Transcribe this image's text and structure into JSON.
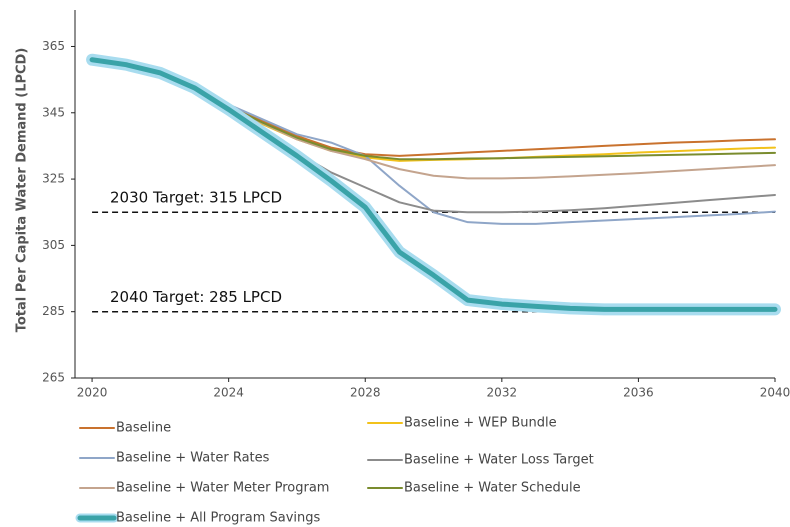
{
  "chart_data": {
    "type": "line",
    "y_label": "Total Per Capita Water Demand (LPCD)",
    "x": [
      2020,
      2021,
      2022,
      2023,
      2024,
      2025,
      2026,
      2027,
      2028,
      2029,
      2030,
      2031,
      2032,
      2033,
      2034,
      2035,
      2036,
      2037,
      2038,
      2039,
      2040
    ],
    "xlim": [
      2019.5,
      2040
    ],
    "xticks": [
      2020,
      2024,
      2028,
      2032,
      2036,
      2040
    ],
    "ylim": [
      265,
      376
    ],
    "yticks": [
      265,
      285,
      305,
      325,
      345,
      365
    ],
    "legend": "bottom",
    "targets": [
      {
        "label": "2030 Target: 315 LPCD",
        "value": 315
      },
      {
        "label": "2040 Target: 285 LPCD",
        "value": 285
      }
    ],
    "series": [
      {
        "name": "Baseline",
        "color": "#c9722e",
        "width": 2,
        "values": [
          361,
          359.5,
          357,
          352,
          347,
          342.5,
          338,
          334.5,
          332.5,
          332,
          332.5,
          333,
          333.5,
          334,
          334.5,
          335,
          335.5,
          336,
          336.3,
          336.7,
          337
        ]
      },
      {
        "name": "Baseline + WEP Bundle",
        "color": "#f2c21b",
        "width": 2,
        "values": [
          361,
          359.5,
          357,
          352,
          346.5,
          341.5,
          337,
          333.5,
          331.5,
          330.5,
          330.8,
          331,
          331.3,
          331.7,
          332.1,
          332.5,
          333,
          333.4,
          333.8,
          334.2,
          334.5
        ]
      },
      {
        "name": "Baseline + Water Rates",
        "color": "#8fa6c8",
        "width": 2,
        "values": [
          361,
          359.5,
          357,
          352,
          347.5,
          343,
          338.5,
          336,
          332,
          323,
          315,
          312,
          311.5,
          311.5,
          312,
          312.5,
          313,
          313.5,
          314,
          314.5,
          315.2
        ]
      },
      {
        "name": "Baseline + Water Loss Target",
        "color": "#8c8c8c",
        "width": 2,
        "values": [
          361,
          359.5,
          357,
          352,
          346,
          339.5,
          333,
          327,
          322.5,
          318,
          315.5,
          315,
          315,
          315.2,
          315.6,
          316.2,
          317,
          317.8,
          318.6,
          319.4,
          320.2
        ]
      },
      {
        "name": "Baseline + Water Meter Program",
        "color": "#c4a48e",
        "width": 2,
        "values": [
          361,
          359.5,
          357,
          352,
          346.8,
          341.8,
          337,
          333.5,
          331,
          328,
          326,
          325.2,
          325.2,
          325.4,
          325.8,
          326.3,
          326.8,
          327.4,
          328,
          328.6,
          329.2
        ]
      },
      {
        "name": "Baseline + Water Schedule",
        "color": "#7a8c2e",
        "width": 2,
        "values": [
          361,
          359.5,
          357,
          352,
          347,
          342,
          337.5,
          334,
          332,
          331,
          331,
          331.2,
          331.3,
          331.5,
          331.7,
          331.9,
          332.1,
          332.3,
          332.5,
          332.7,
          332.9
        ]
      },
      {
        "name": "Baseline + All Program Savings",
        "color": "#3aa3a8",
        "glow_color": "#a8dcef",
        "width": 5,
        "values": [
          361,
          359.5,
          357,
          352.5,
          346,
          339,
          332,
          324.5,
          316.5,
          303,
          296,
          288.5,
          287.3,
          286.6,
          286,
          285.7,
          285.7,
          285.7,
          285.7,
          285.7,
          285.7
        ]
      }
    ]
  }
}
